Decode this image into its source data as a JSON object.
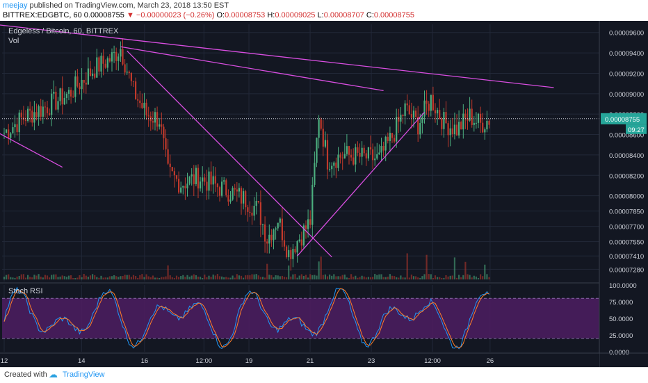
{
  "header": {
    "author": "meejay",
    "published": "published on TradingView.com, March 23, 2018 13:50 EST",
    "symbol": "BITTREX:EDGBTC, 60",
    "last": "0.00008755",
    "change": "▼ −0.00000023 (−0.26%)",
    "o_label": "O:",
    "o_value": "0.00008753",
    "h_label": "H:",
    "h_value": "0.00009025",
    "l_label": "L:",
    "l_value": "0.00008707",
    "c_label": "C:",
    "c_value": "0.00008755"
  },
  "chart_data": [
    {
      "type": "candlestick",
      "title": "Edgeless / Bitcoin, 60, BITTREX",
      "subtitle": "Vol",
      "ylim": [
        7.18e-05,
        9.68e-05
      ],
      "price_ticks": [
        "0.00009600",
        "0.00009400",
        "0.00009200",
        "0.00009000",
        "0.00008800",
        "0.00008600",
        "0.00008400",
        "0.00008200",
        "0.00008000",
        "0.00007850",
        "0.00007700",
        "0.00007550",
        "0.00007410",
        "0.00007280"
      ],
      "last_price_label": "0.00008755",
      "countdown_label": "09:27",
      "x_ticks": [
        "12",
        "14",
        "16",
        "12:00",
        "19",
        "21",
        "23",
        "12:00",
        "26"
      ],
      "anchors": [
        {
          "x": 0,
          "y": 8.62e-05
        },
        {
          "x": 10,
          "y": 8.78e-05
        },
        {
          "x": 20,
          "y": 8.88e-05
        },
        {
          "x": 30,
          "y": 9e-05
        },
        {
          "x": 42,
          "y": 9.25e-05
        },
        {
          "x": 50,
          "y": 9.35e-05
        },
        {
          "x": 54,
          "y": 9.45e-05
        },
        {
          "x": 60,
          "y": 9.02e-05
        },
        {
          "x": 66,
          "y": 8.8e-05
        },
        {
          "x": 72,
          "y": 8.75e-05
        },
        {
          "x": 76,
          "y": 8.22e-05
        },
        {
          "x": 82,
          "y": 8.12e-05
        },
        {
          "x": 90,
          "y": 8.18e-05
        },
        {
          "x": 98,
          "y": 8.1e-05
        },
        {
          "x": 106,
          "y": 8.03e-05
        },
        {
          "x": 112,
          "y": 7.96e-05
        },
        {
          "x": 118,
          "y": 7.86e-05
        },
        {
          "x": 122,
          "y": 7.58e-05
        },
        {
          "x": 127,
          "y": 7.78e-05
        },
        {
          "x": 132,
          "y": 7.44e-05
        },
        {
          "x": 138,
          "y": 7.62e-05
        },
        {
          "x": 142,
          "y": 7.75e-05
        },
        {
          "x": 146,
          "y": 8.8e-05
        },
        {
          "x": 150,
          "y": 8.35e-05
        },
        {
          "x": 158,
          "y": 8.4e-05
        },
        {
          "x": 166,
          "y": 8.38e-05
        },
        {
          "x": 174,
          "y": 8.36e-05
        },
        {
          "x": 180,
          "y": 8.58e-05
        },
        {
          "x": 186,
          "y": 8.85e-05
        },
        {
          "x": 192,
          "y": 8.7e-05
        },
        {
          "x": 198,
          "y": 8.95e-05
        },
        {
          "x": 204,
          "y": 8.72e-05
        },
        {
          "x": 210,
          "y": 8.65e-05
        },
        {
          "x": 216,
          "y": 8.78e-05
        },
        {
          "x": 221,
          "y": 8.7e-05
        },
        {
          "x": 225,
          "y": 8.75e-05
        }
      ],
      "trendlines": [
        {
          "p1": [
            -55,
            9.8e-05
          ],
          "p2": [
            255,
            9.06e-05
          ],
          "color": "#d84ee0"
        },
        {
          "p1": [
            54,
            9.46e-05
          ],
          "p2": [
            176,
            9.03e-05
          ],
          "color": "#d84ee0"
        },
        {
          "p1": [
            57,
            9.42e-05
          ],
          "p2": [
            152,
            7.4e-05
          ],
          "color": "#d84ee0"
        },
        {
          "p1": [
            136,
            7.41e-05
          ],
          "p2": [
            195,
            8.82e-05
          ],
          "color": "#d84ee0"
        },
        {
          "p1": [
            -3,
            8.62e-05
          ],
          "p2": [
            27,
            8.28e-05
          ],
          "color": "#d84ee0"
        }
      ]
    },
    {
      "type": "line",
      "title": "Stoch RSI",
      "ylim": [
        0,
        100
      ],
      "ticks": [
        "100.0000",
        "75.0000",
        "50.0000",
        "25.0000",
        "0.0000"
      ],
      "band": [
        20,
        80
      ],
      "series": [
        {
          "color": "#2196f3"
        },
        {
          "color": "#ff7f2a"
        }
      ]
    }
  ],
  "colors": {
    "background": "#131722",
    "grid": "#222838",
    "up": "#4caf7f",
    "down": "#c0392b",
    "trendline": "#d84ee0",
    "band_fill": "#4a1d5e",
    "last_price_bg": "#26a69a"
  },
  "footer": {
    "created_with": "Created with",
    "brand": "TradingView"
  }
}
